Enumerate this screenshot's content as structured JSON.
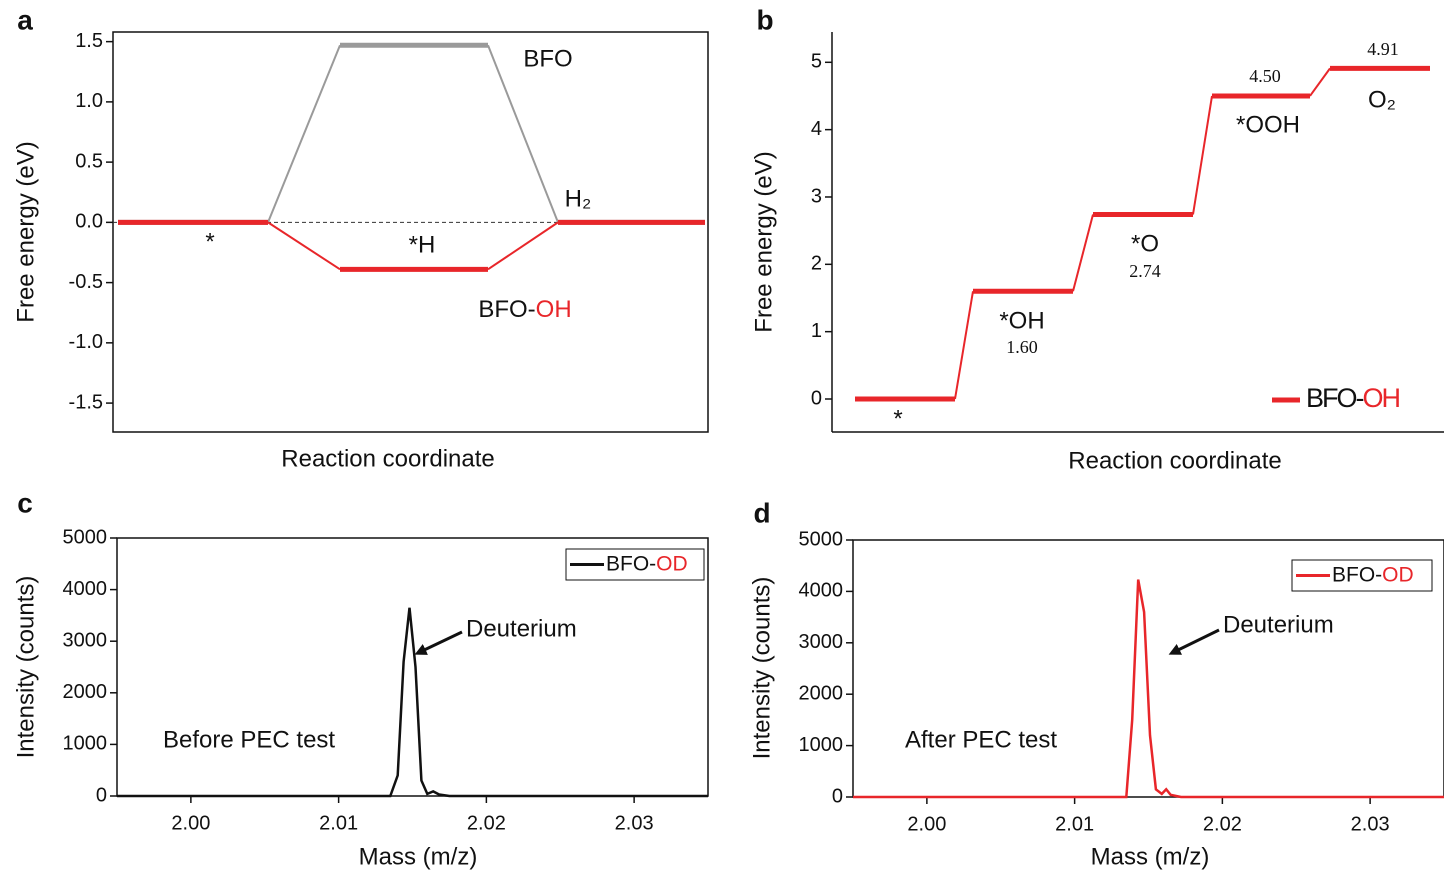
{
  "chart_data": [
    {
      "type": "energy_levels",
      "panel_label": "a",
      "ylabel": "Free energy (eV)",
      "xlabel": "Reaction coordinate",
      "categories": [
        "*",
        "*H",
        "H₂"
      ],
      "series": [
        {
          "name": "BFO",
          "color": "#9a9a9a",
          "values": [
            0,
            1.47,
            0
          ]
        },
        {
          "name": "BFO-OH",
          "color": "#e8262a",
          "values": [
            0,
            -0.39,
            0
          ]
        }
      ],
      "highlight_color": "#e8262a",
      "ylim": [
        -1.74,
        1.58
      ],
      "yticks": [
        {
          "value": 1.5,
          "label": "1.5"
        },
        {
          "value": 1,
          "label": "1.0"
        },
        {
          "value": 0.5,
          "label": "0.5"
        },
        {
          "value": 0,
          "label": "0.0"
        },
        {
          "value": -0.5,
          "label": "-0.5"
        },
        {
          "value": -1,
          "label": "-1.0"
        },
        {
          "value": -1.5,
          "label": "-1.5"
        }
      ],
      "zero_line": true
    },
    {
      "type": "energy_levels",
      "panel_label": "b",
      "ylabel": "Free energy  (eV)",
      "xlabel": "Reaction coordinate",
      "categories": [
        "*",
        "*OH",
        "*O",
        "*OOH",
        "O₂"
      ],
      "series": [
        {
          "name": "BFO-OH",
          "color": "#e8262a",
          "values": [
            0,
            1.6,
            2.74,
            4.5,
            4.91
          ],
          "value_labels": [
            null,
            "1.60",
            "2.74",
            "4.50",
            "4.91"
          ]
        }
      ],
      "highlight_color": "#e8262a",
      "ylim": [
        -0.49,
        5.45
      ],
      "yticks": [
        0,
        1,
        2,
        3,
        4,
        5
      ],
      "legend": "lower right"
    },
    {
      "type": "line",
      "panel_label": "c",
      "ylabel": "Intensity (counts)",
      "xlabel": "Mass (m/z)",
      "x": [
        1.995,
        2.0135,
        2.014,
        2.0144,
        2.0148,
        2.0152,
        2.0156,
        2.016,
        2.0164,
        2.0168,
        2.0175,
        2.035
      ],
      "series": [
        {
          "name": "BFO-OD",
          "color": "#111111",
          "values": [
            0,
            0,
            400,
            2600,
            3650,
            2500,
            300,
            40,
            90,
            30,
            0,
            0
          ]
        }
      ],
      "highlight_color": "#e8262a",
      "xlim": [
        1.995,
        2.035
      ],
      "ylim": [
        0,
        5000
      ],
      "xticks": [
        {
          "value": 2,
          "label": "2.00"
        },
        2.01,
        2.02,
        2.03
      ],
      "yticks": [
        0,
        1000,
        2000,
        3000,
        4000,
        5000
      ],
      "annotations": [
        "Deuterium",
        "Before PEC test"
      ],
      "legend": "upper right"
    },
    {
      "type": "line",
      "panel_label": "d",
      "ylabel": "Intensity (counts)",
      "xlabel": "Mass (m/z)",
      "x": [
        1.995,
        2.0135,
        2.0139,
        2.0143,
        2.0147,
        2.0151,
        2.0155,
        2.0159,
        2.0162,
        2.0165,
        2.0172,
        2.035
      ],
      "series": [
        {
          "name": "BFO-OD",
          "color": "#e8262a",
          "values": [
            0,
            0,
            1500,
            4230,
            3600,
            1200,
            150,
            60,
            150,
            40,
            0,
            0
          ]
        }
      ],
      "highlight_color": "#e8262a",
      "xlim": [
        1.995,
        2.035
      ],
      "ylim": [
        0,
        5000
      ],
      "xticks": [
        {
          "value": 2,
          "label": "2.00"
        },
        2.01,
        2.02,
        2.03
      ],
      "yticks": [
        0,
        1000,
        2000,
        3000,
        4000,
        5000
      ],
      "annotations": [
        "Deuterium",
        "After PEC test"
      ],
      "legend": "upper right"
    }
  ]
}
